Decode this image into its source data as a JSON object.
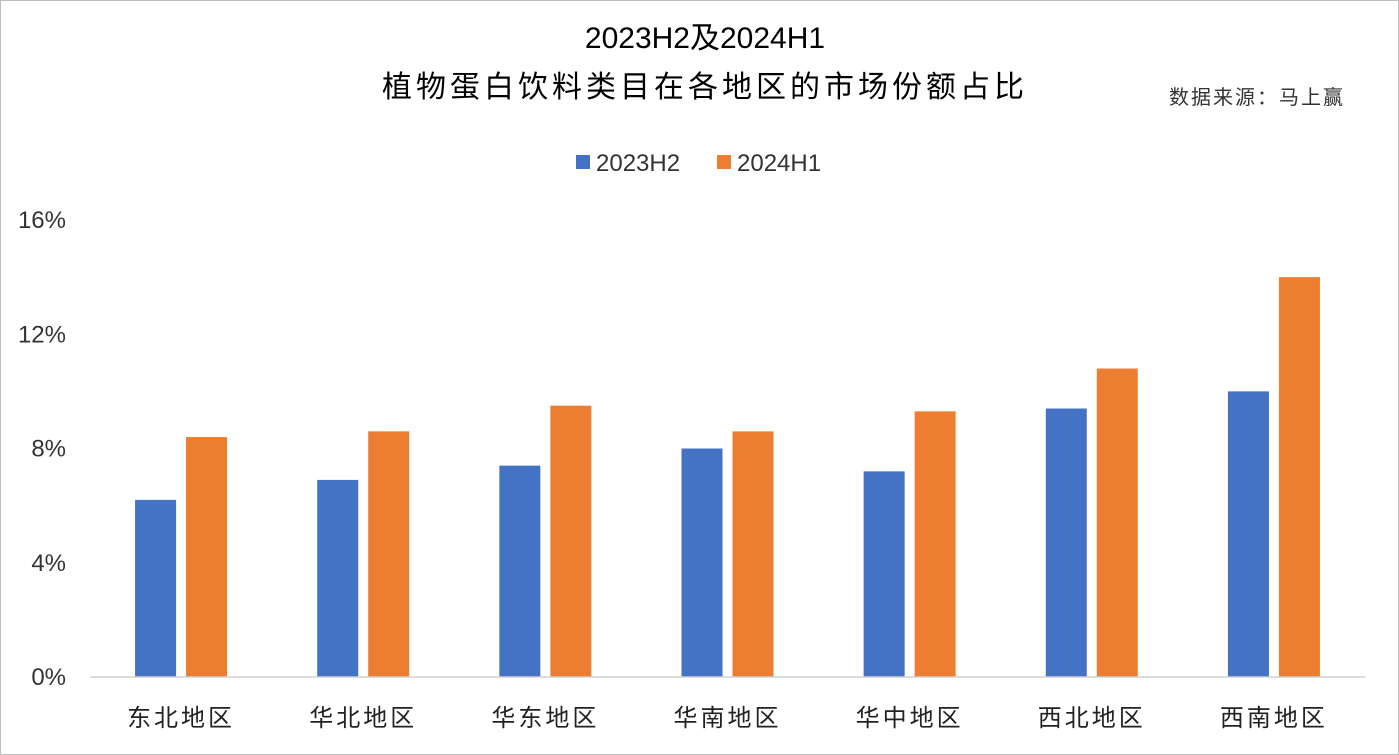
{
  "chart_data": {
    "type": "bar",
    "title_line1": "2023H2及2024H1",
    "title_line2": "植物蛋白饮料类目在各地区的市场份额占比",
    "source_note": "数据来源：马上赢",
    "categories": [
      "东北地区",
      "华北地区",
      "华东地区",
      "华南地区",
      "华中地区",
      "西北地区",
      "西南地区"
    ],
    "series": [
      {
        "name": "2023H2",
        "color": "#4472C4",
        "values": [
          6.2,
          6.9,
          7.4,
          8.0,
          7.2,
          9.4,
          10.0
        ]
      },
      {
        "name": "2024H1",
        "color": "#ED7D31",
        "values": [
          8.4,
          8.6,
          9.5,
          8.6,
          9.3,
          10.8,
          14.0
        ]
      }
    ],
    "ylim": [
      0,
      16
    ],
    "yticks": [
      0,
      4,
      8,
      12,
      16
    ],
    "ytick_labels": [
      "0%",
      "4%",
      "8%",
      "12%",
      "16%"
    ],
    "legend_position": "top-center",
    "grid": false,
    "xlabel": "",
    "ylabel": ""
  }
}
